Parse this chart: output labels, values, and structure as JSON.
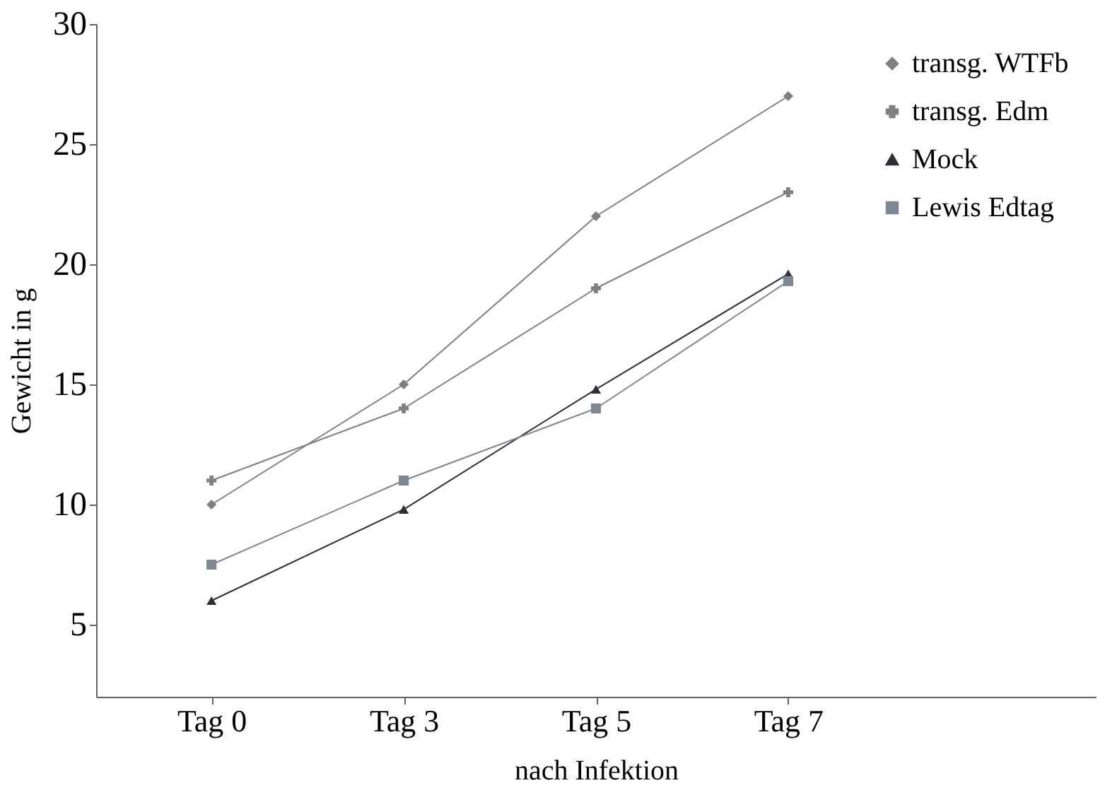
{
  "chart_data": {
    "type": "line",
    "xlabel": "nach Infektion",
    "ylabel": "Gewicht in g",
    "categories": [
      "Tag 0",
      "Tag 3",
      "Tag 5",
      "Tag 7"
    ],
    "series": [
      {
        "name": "transg. WTFb",
        "color": "#808080",
        "marker": "diamond",
        "values": [
          10,
          15,
          22,
          27
        ]
      },
      {
        "name": "transg. Edm",
        "color": "#808080",
        "marker": "cross",
        "values": [
          11,
          14,
          19,
          23
        ]
      },
      {
        "name": "Mock",
        "color": "#2b2f36",
        "marker": "triangle",
        "values": [
          6,
          9.8,
          14.8,
          19.6
        ]
      },
      {
        "name": "Lewis Edtag",
        "color": "#7d8894",
        "marker": "square",
        "values": [
          7.5,
          11,
          14,
          19.3
        ]
      }
    ],
    "ylim": [
      2,
      30
    ],
    "yticks": [
      5,
      10,
      15,
      20,
      25,
      30
    ],
    "grid": false,
    "legend": "top right",
    "line_style": "solid"
  }
}
